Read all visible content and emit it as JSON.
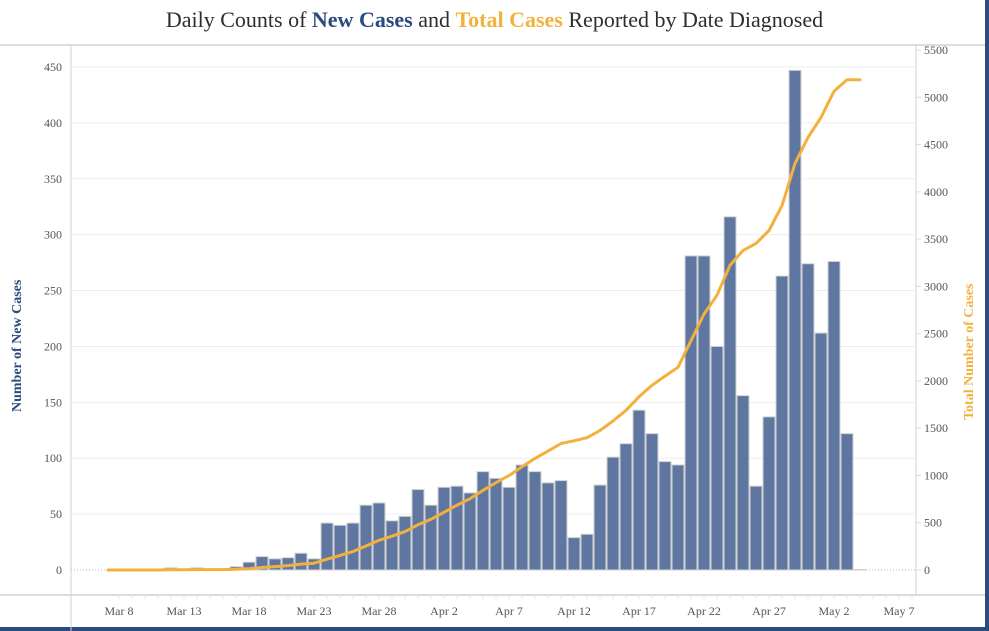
{
  "title": {
    "prefix": "Daily Counts of ",
    "new_cases": "New Cases",
    "middle": " and ",
    "total_cases": "Total Cases",
    "suffix": " Reported by Date Diagnosed"
  },
  "colors": {
    "new_cases": "#5f77a0",
    "new_cases_label": "#2b4a7e",
    "total_cases": "#f2b13c",
    "frame": "#2b4a7e"
  },
  "chart_data": {
    "type": "bar",
    "title": "Daily Counts of New Cases and Total Cases Reported by Date Diagnosed",
    "xlabel": "",
    "ylabel": "Number of New Cases",
    "y2label": "Total Number of Cases",
    "ylim": [
      0,
      450
    ],
    "y2lim": [
      0,
      5500
    ],
    "yticks": [
      0,
      50,
      100,
      150,
      200,
      250,
      300,
      350,
      400,
      450
    ],
    "y2ticks": [
      0,
      500,
      1000,
      1500,
      2000,
      2500,
      3000,
      3500,
      4000,
      4500,
      5000,
      5500
    ],
    "xtick_labels": [
      "Mar 8",
      "Mar 13",
      "Mar 18",
      "Mar 23",
      "Mar 28",
      "Apr 2",
      "Apr 7",
      "Apr 12",
      "Apr 17",
      "Apr 22",
      "Apr 27",
      "May 2",
      "May 7"
    ],
    "grid": true,
    "categories": [
      "Mar 8",
      "Mar 9",
      "Mar 10",
      "Mar 11",
      "Mar 12",
      "Mar 13",
      "Mar 14",
      "Mar 15",
      "Mar 16",
      "Mar 17",
      "Mar 18",
      "Mar 19",
      "Mar 20",
      "Mar 21",
      "Mar 22",
      "Mar 23",
      "Mar 24",
      "Mar 25",
      "Mar 26",
      "Mar 27",
      "Mar 28",
      "Mar 29",
      "Mar 30",
      "Mar 31",
      "Apr 1",
      "Apr 2",
      "Apr 3",
      "Apr 4",
      "Apr 5",
      "Apr 6",
      "Apr 7",
      "Apr 8",
      "Apr 9",
      "Apr 10",
      "Apr 11",
      "Apr 12",
      "Apr 13",
      "Apr 14",
      "Apr 15",
      "Apr 16",
      "Apr 17",
      "Apr 18",
      "Apr 19",
      "Apr 20",
      "Apr 21",
      "Apr 22",
      "Apr 23",
      "Apr 24",
      "Apr 25",
      "Apr 26",
      "Apr 27",
      "Apr 28",
      "Apr 29",
      "Apr 30",
      "May 1",
      "May 2",
      "May 3",
      "May 4"
    ],
    "series": [
      {
        "name": "New Cases",
        "type": "bar",
        "axis": "left",
        "values": [
          0,
          0,
          0,
          0,
          2,
          0,
          2,
          0,
          0,
          3,
          7,
          12,
          10,
          11,
          15,
          10,
          42,
          40,
          42,
          58,
          60,
          44,
          48,
          72,
          58,
          74,
          75,
          69,
          88,
          82,
          74,
          94,
          88,
          78,
          80,
          29,
          32,
          76,
          101,
          113,
          143,
          122,
          97,
          94,
          281,
          281,
          200,
          316,
          156,
          75,
          137,
          263,
          447,
          274,
          212,
          276,
          122,
          0
        ]
      },
      {
        "name": "Total Cases",
        "type": "line",
        "axis": "right",
        "values": [
          0,
          0,
          0,
          0,
          2,
          2,
          4,
          4,
          4,
          7,
          14,
          26,
          36,
          47,
          62,
          72,
          114,
          154,
          196,
          254,
          314,
          358,
          406,
          478,
          536,
          610,
          685,
          754,
          842,
          924,
          998,
          1092,
          1180,
          1258,
          1338,
          1367,
          1399,
          1475,
          1576,
          1689,
          1832,
          1954,
          2051,
          2145,
          2426,
          2707,
          2907,
          3223,
          3379,
          3454,
          3591,
          3854,
          4301,
          4575,
          4787,
          5063,
          5185,
          5185
        ]
      }
    ]
  }
}
